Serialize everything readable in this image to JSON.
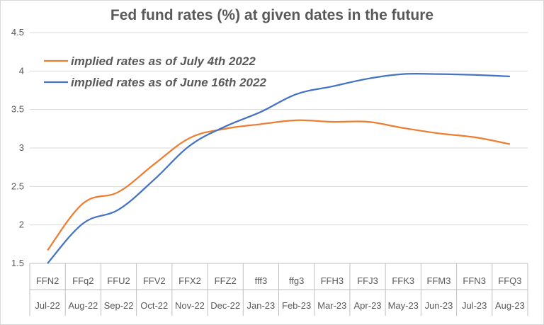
{
  "chart_data": {
    "type": "line",
    "title": "Fed fund rates (%) at given dates in the future",
    "categories": [
      {
        "code": "FFN2",
        "date": "Jul-22"
      },
      {
        "code": "FFq2",
        "date": "Aug-22"
      },
      {
        "code": "FFU2",
        "date": "Sep-22"
      },
      {
        "code": "FFV2",
        "date": "Oct-22"
      },
      {
        "code": "FFX2",
        "date": "Nov-22"
      },
      {
        "code": "FFZ2",
        "date": "Dec-22"
      },
      {
        "code": "fff3",
        "date": "Jan-23"
      },
      {
        "code": "ffg3",
        "date": "Feb-23"
      },
      {
        "code": "FFH3",
        "date": "Mar-23"
      },
      {
        "code": "FFJ3",
        "date": "Apr-23"
      },
      {
        "code": "FFK3",
        "date": "May-23"
      },
      {
        "code": "FFM3",
        "date": "Jun-23"
      },
      {
        "code": "FFN3",
        "date": "Jul-23"
      },
      {
        "code": "FFQ3",
        "date": "Aug-23"
      }
    ],
    "series": [
      {
        "name": "implied rates as of July 4th 2022",
        "color": "#ED7D31",
        "values": [
          1.67,
          2.28,
          2.43,
          2.79,
          3.13,
          3.25,
          3.31,
          3.36,
          3.34,
          3.34,
          3.26,
          3.19,
          3.14,
          3.05
        ]
      },
      {
        "name": "implied rates as of June 16th 2022",
        "color": "#4472C4",
        "values": [
          1.49,
          2.02,
          2.2,
          2.59,
          3.03,
          3.28,
          3.47,
          3.7,
          3.8,
          3.9,
          3.96,
          3.96,
          3.95,
          3.93
        ]
      }
    ],
    "yticks": [
      "1.5",
      "2",
      "2.5",
      "3",
      "3.5",
      "4",
      "4.5"
    ],
    "ylim": [
      1.5,
      4.5
    ],
    "grid": true,
    "legend": "top-left"
  }
}
